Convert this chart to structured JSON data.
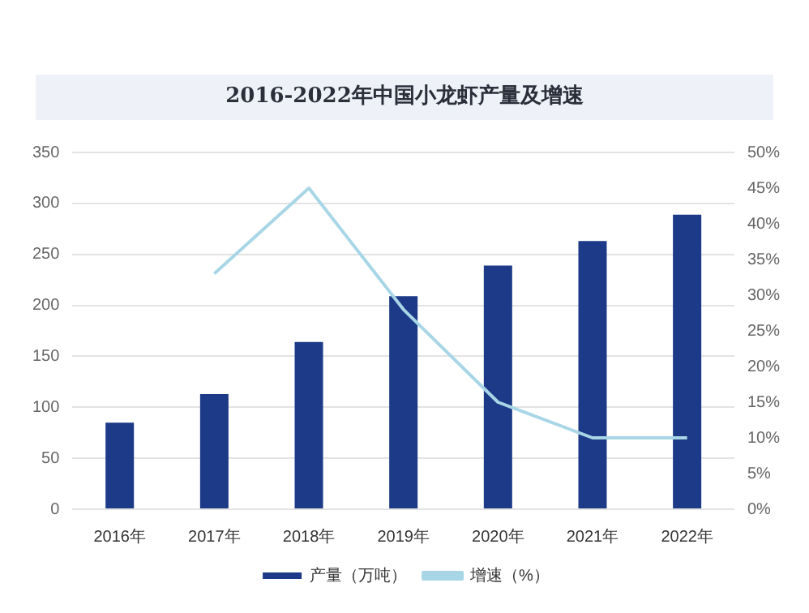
{
  "chart_data": {
    "type": "bar",
    "title": "2016-2022年中国小龙虾产量及增速",
    "categories": [
      "2016年",
      "2017年",
      "2018年",
      "2019年",
      "2020年",
      "2021年",
      "2022年"
    ],
    "series": [
      {
        "name": "产量（万吨）",
        "color": "#1c3a87",
        "values": [
          85,
          113,
          164,
          209,
          239,
          263,
          289
        ]
      },
      {
        "name": "增速（%）",
        "type": "line",
        "axis": "y2",
        "color": "#a9d6e6",
        "values": [
          null,
          33,
          45,
          28,
          15,
          10,
          10
        ]
      }
    ],
    "ylim": [
      0,
      350
    ],
    "yticks": [
      0,
      50,
      100,
      150,
      200,
      250,
      300,
      350
    ],
    "y2lim": [
      0,
      50
    ],
    "y2ticks": [
      {
        "value": 0,
        "label": "0%"
      },
      {
        "value": 5,
        "label": "5%"
      },
      {
        "value": 10,
        "label": "10%"
      },
      {
        "value": 15,
        "label": "15%"
      },
      {
        "value": 20,
        "label": "20%"
      },
      {
        "value": 25,
        "label": "25%"
      },
      {
        "value": 30,
        "label": "30%"
      },
      {
        "value": 35,
        "label": "35%"
      },
      {
        "value": 40,
        "label": "40%"
      },
      {
        "value": 45,
        "label": "45%"
      },
      {
        "value": 50,
        "label": "50%"
      }
    ],
    "grid": "y",
    "legend": "bottom",
    "marker": "none"
  }
}
